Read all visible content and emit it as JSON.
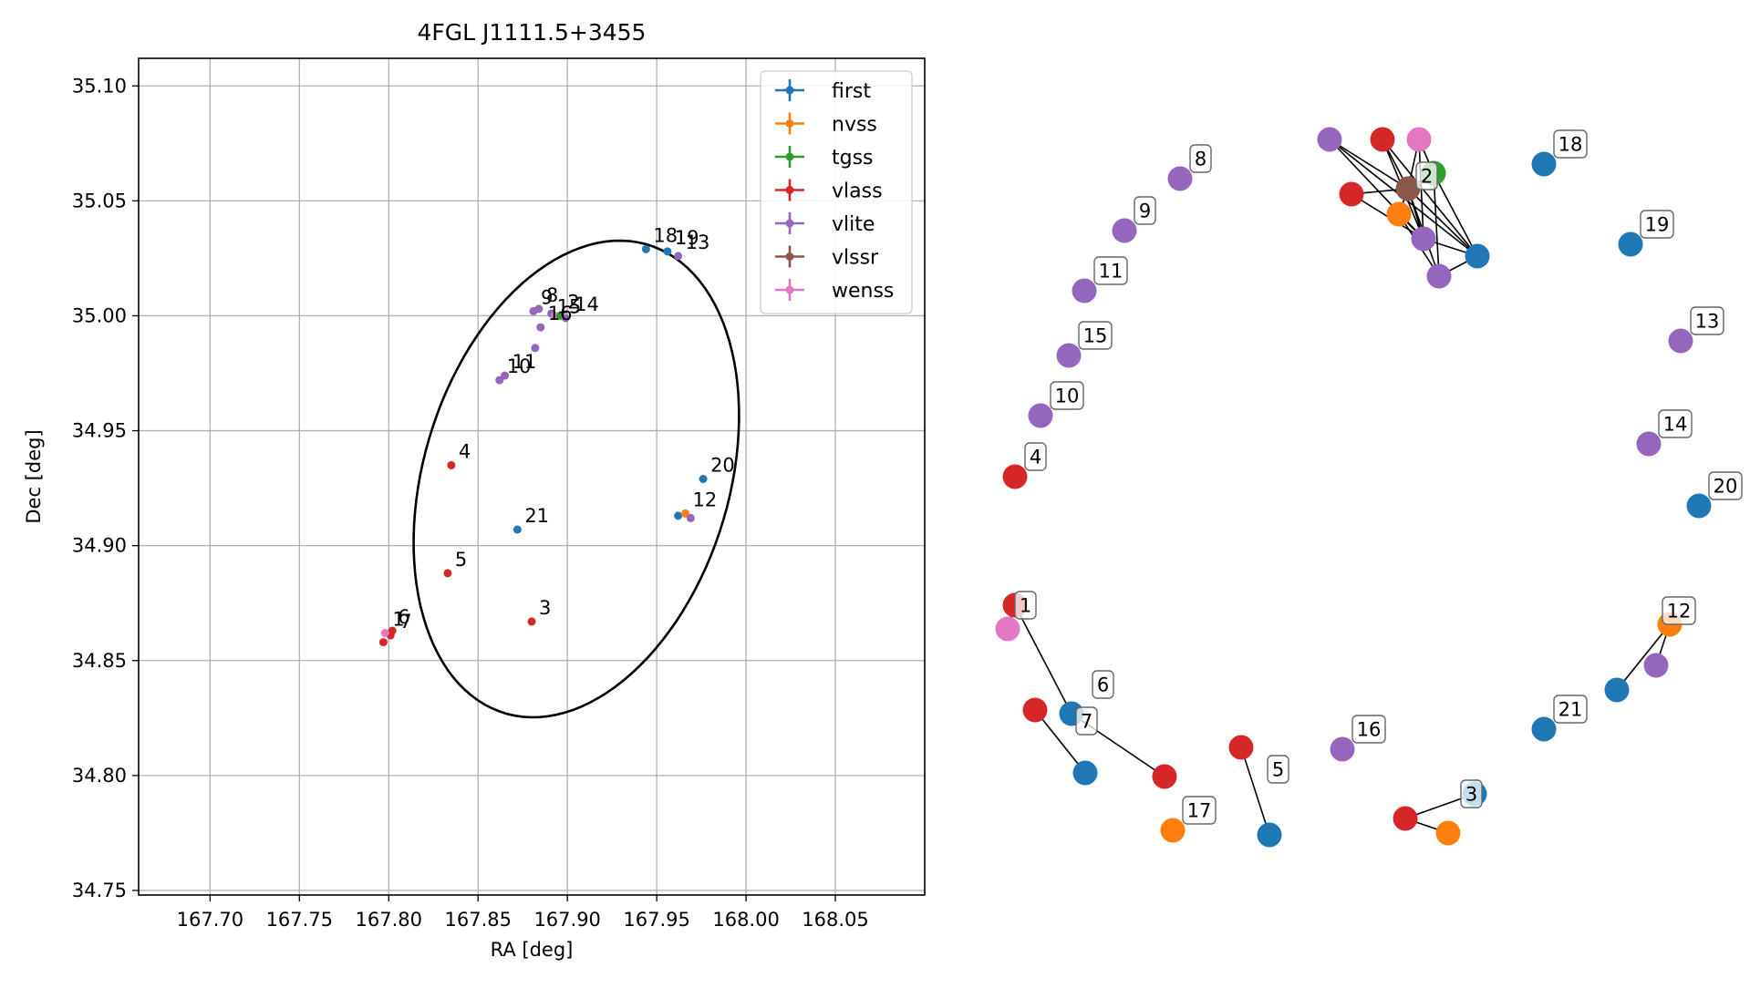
{
  "colors": {
    "first": "#1f77b4",
    "nvss": "#ff7f0e",
    "tgss": "#2ca02c",
    "vlass": "#d62728",
    "vlite": "#9467bd",
    "vlssr": "#8c564b",
    "wenss": "#e377c2"
  },
  "chart_data": [
    {
      "type": "scatter",
      "title": "4FGL J1111.5+3455",
      "xlabel": "RA [deg]",
      "ylabel": "Dec [deg]",
      "xlim": [
        167.66,
        168.1
      ],
      "ylim": [
        34.748,
        35.112
      ],
      "xticks": [
        167.7,
        167.75,
        167.8,
        167.85,
        167.9,
        167.95,
        168.0,
        168.05
      ],
      "xtick_labels": [
        "167.70",
        "167.75",
        "167.80",
        "167.85",
        "167.90",
        "167.95",
        "168.00",
        "168.05"
      ],
      "yticks": [
        34.75,
        34.8,
        34.85,
        34.9,
        34.95,
        35.0,
        35.05,
        35.1
      ],
      "ytick_labels": [
        "34.75",
        "34.80",
        "34.85",
        "34.90",
        "34.95",
        "35.00",
        "35.05",
        "35.10"
      ],
      "grid": true,
      "legend_position": "top-right",
      "legend": [
        "first",
        "nvss",
        "tgss",
        "vlass",
        "vlite",
        "vlssr",
        "wenss"
      ],
      "ellipse": {
        "center": [
          167.905,
          34.929
        ],
        "semi_major": 0.111,
        "semi_minor": 0.082,
        "angle_deg": 58
      },
      "points": [
        {
          "survey": "first",
          "ra": 167.944,
          "dec": 35.029
        },
        {
          "survey": "first",
          "ra": 167.956,
          "dec": 35.028
        },
        {
          "survey": "vlite",
          "ra": 167.962,
          "dec": 35.026
        },
        {
          "survey": "vlite",
          "ra": 167.881,
          "dec": 35.002
        },
        {
          "survey": "vlite",
          "ra": 167.884,
          "dec": 35.003
        },
        {
          "survey": "vlite",
          "ra": 167.891,
          "dec": 35.001
        },
        {
          "survey": "wenss",
          "ra": 167.893,
          "dec": 35.0
        },
        {
          "survey": "tgss",
          "ra": 167.896,
          "dec": 35.0
        },
        {
          "survey": "vlite",
          "ra": 167.899,
          "dec": 34.999
        },
        {
          "survey": "vlite",
          "ra": 167.885,
          "dec": 34.995
        },
        {
          "survey": "vlite",
          "ra": 167.882,
          "dec": 34.986
        },
        {
          "survey": "vlite",
          "ra": 167.865,
          "dec": 34.974
        },
        {
          "survey": "vlite",
          "ra": 167.862,
          "dec": 34.972
        },
        {
          "survey": "vlass",
          "ra": 167.835,
          "dec": 34.935
        },
        {
          "survey": "first",
          "ra": 167.976,
          "dec": 34.929
        },
        {
          "survey": "first",
          "ra": 167.962,
          "dec": 34.913
        },
        {
          "survey": "nvss",
          "ra": 167.966,
          "dec": 34.914
        },
        {
          "survey": "vlite",
          "ra": 167.969,
          "dec": 34.912
        },
        {
          "survey": "first",
          "ra": 167.872,
          "dec": 34.907
        },
        {
          "survey": "vlass",
          "ra": 167.833,
          "dec": 34.888
        },
        {
          "survey": "vlass",
          "ra": 167.88,
          "dec": 34.867
        },
        {
          "survey": "vlass",
          "ra": 167.802,
          "dec": 34.863
        },
        {
          "survey": "vlass",
          "ra": 167.801,
          "dec": 34.861
        },
        {
          "survey": "wenss",
          "ra": 167.798,
          "dec": 34.862
        },
        {
          "survey": "vlass",
          "ra": 167.797,
          "dec": 34.858
        }
      ],
      "point_labels": [
        {
          "text": "18",
          "ra": 167.944,
          "dec": 35.029
        },
        {
          "text": "19",
          "ra": 167.956,
          "dec": 35.028
        },
        {
          "text": "13",
          "ra": 167.962,
          "dec": 35.026
        },
        {
          "text": "1",
          "ra": 167.956,
          "dec": 35.028
        },
        {
          "text": "9",
          "ra": 167.881,
          "dec": 35.002
        },
        {
          "text": "8",
          "ra": 167.884,
          "dec": 35.003
        },
        {
          "text": "2",
          "ra": 167.896,
          "dec": 35.0
        },
        {
          "text": "15",
          "ra": 167.89,
          "dec": 34.998
        },
        {
          "text": "14",
          "ra": 167.9,
          "dec": 34.999
        },
        {
          "text": "16",
          "ra": 167.885,
          "dec": 34.995
        },
        {
          "text": "11",
          "ra": 167.865,
          "dec": 34.974
        },
        {
          "text": "10",
          "ra": 167.862,
          "dec": 34.972
        },
        {
          "text": "4",
          "ra": 167.835,
          "dec": 34.935
        },
        {
          "text": "20",
          "ra": 167.976,
          "dec": 34.929
        },
        {
          "text": "12",
          "ra": 167.966,
          "dec": 34.914
        },
        {
          "text": "21",
          "ra": 167.872,
          "dec": 34.907
        },
        {
          "text": "5",
          "ra": 167.833,
          "dec": 34.888
        },
        {
          "text": "3",
          "ra": 167.88,
          "dec": 34.867
        },
        {
          "text": "1",
          "ra": 167.798,
          "dec": 34.862
        },
        {
          "text": "6",
          "ra": 167.801,
          "dec": 34.863
        },
        {
          "text": "7",
          "ra": 167.802,
          "dec": 34.861
        }
      ]
    },
    {
      "type": "network",
      "nodes": [
        {
          "id": "n8",
          "survey": "vlite",
          "label": "8"
        },
        {
          "id": "n9",
          "survey": "vlite",
          "label": "9"
        },
        {
          "id": "n11",
          "survey": "vlite",
          "label": "11"
        },
        {
          "id": "n15",
          "survey": "vlite",
          "label": "15"
        },
        {
          "id": "n10",
          "survey": "vlite",
          "label": "10"
        },
        {
          "id": "n4",
          "survey": "vlass",
          "label": "4"
        },
        {
          "id": "n18",
          "survey": "first",
          "label": "18"
        },
        {
          "id": "n19",
          "survey": "first",
          "label": "19"
        },
        {
          "id": "n13",
          "survey": "vlite",
          "label": "13"
        },
        {
          "id": "n14",
          "survey": "vlite",
          "label": "14"
        },
        {
          "id": "n20",
          "survey": "first",
          "label": "20"
        },
        {
          "id": "n21",
          "survey": "first",
          "label": "21"
        },
        {
          "id": "n16",
          "survey": "vlite",
          "label": "16"
        },
        {
          "id": "n17",
          "survey": "nvss",
          "label": "17"
        },
        {
          "id": "c2a",
          "survey": "vlite",
          "label": ""
        },
        {
          "id": "c2b",
          "survey": "vlass",
          "label": ""
        },
        {
          "id": "c2c",
          "survey": "wenss",
          "label": ""
        },
        {
          "id": "c2d",
          "survey": "tgss",
          "label": ""
        },
        {
          "id": "c2e",
          "survey": "vlass",
          "label": ""
        },
        {
          "id": "c2f",
          "survey": "vlssr",
          "label": "2"
        },
        {
          "id": "c2g",
          "survey": "nvss",
          "label": ""
        },
        {
          "id": "c2h",
          "survey": "vlite",
          "label": ""
        },
        {
          "id": "c2i",
          "survey": "vlite",
          "label": ""
        },
        {
          "id": "c2j",
          "survey": "first",
          "label": ""
        },
        {
          "id": "c1a",
          "survey": "vlass",
          "label": "1"
        },
        {
          "id": "c1b",
          "survey": "wenss",
          "label": ""
        },
        {
          "id": "c6a",
          "survey": "first",
          "label": "6"
        },
        {
          "id": "c6b",
          "survey": "vlass",
          "label": ""
        },
        {
          "id": "c7a",
          "survey": "vlass",
          "label": ""
        },
        {
          "id": "c7b",
          "survey": "first",
          "label": "7"
        },
        {
          "id": "c5a",
          "survey": "vlass",
          "label": ""
        },
        {
          "id": "c5b",
          "survey": "first",
          "label": "5"
        },
        {
          "id": "c3a",
          "survey": "vlass",
          "label": ""
        },
        {
          "id": "c3b",
          "survey": "first",
          "label": "3"
        },
        {
          "id": "c3c",
          "survey": "nvss",
          "label": ""
        },
        {
          "id": "c12a",
          "survey": "first",
          "label": ""
        },
        {
          "id": "c12b",
          "survey": "nvss",
          "label": "12"
        },
        {
          "id": "c12c",
          "survey": "vlite",
          "label": ""
        }
      ],
      "edges": [
        [
          "c2a",
          "c2f"
        ],
        [
          "c2a",
          "c2j"
        ],
        [
          "c2a",
          "c2h"
        ],
        [
          "c2b",
          "c2f"
        ],
        [
          "c2b",
          "c2h"
        ],
        [
          "c2b",
          "c2j"
        ],
        [
          "c2c",
          "c2f"
        ],
        [
          "c2c",
          "c2h"
        ],
        [
          "c2c",
          "c2d"
        ],
        [
          "c2d",
          "c2f"
        ],
        [
          "c2d",
          "c2j"
        ],
        [
          "c2d",
          "c2i"
        ],
        [
          "c2e",
          "c2f"
        ],
        [
          "c2e",
          "c2h"
        ],
        [
          "c2f",
          "c2g"
        ],
        [
          "c2f",
          "c2h"
        ],
        [
          "c2f",
          "c2i"
        ],
        [
          "c2f",
          "c2j"
        ],
        [
          "c2g",
          "c2h"
        ],
        [
          "c2g",
          "c2i"
        ],
        [
          "c2h",
          "c2j"
        ],
        [
          "c2i",
          "c2j"
        ],
        [
          "c1a",
          "c1b"
        ],
        [
          "c1a",
          "c6a"
        ],
        [
          "c6a",
          "c6b"
        ],
        [
          "c7a",
          "c7b"
        ],
        [
          "c5a",
          "c5b"
        ],
        [
          "c3a",
          "c3b"
        ],
        [
          "c3a",
          "c3c"
        ],
        [
          "c12a",
          "c12b"
        ],
        [
          "c12b",
          "c12c"
        ]
      ]
    }
  ]
}
